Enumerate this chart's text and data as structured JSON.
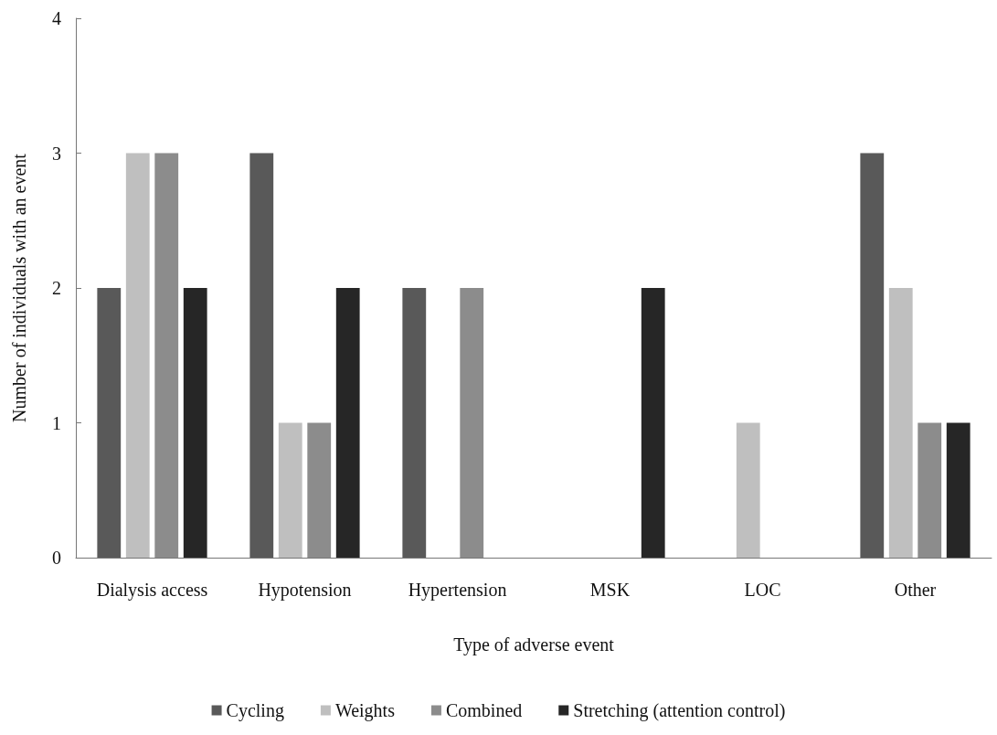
{
  "chart_data": {
    "type": "bar",
    "xlabel": "Type of adverse event",
    "ylabel": "Number of individuals with an event",
    "categories": [
      "Dialysis access",
      "Hypotension",
      "Hypertension",
      "MSK",
      "LOC",
      "Other"
    ],
    "series": [
      {
        "name": "Cycling",
        "color": "#595959",
        "values": [
          2,
          3,
          2,
          0,
          0,
          3
        ]
      },
      {
        "name": "Weights",
        "color": "#bfbfbf",
        "values": [
          3,
          1,
          0,
          0,
          1,
          2
        ]
      },
      {
        "name": "Combined",
        "color": "#8c8c8c",
        "values": [
          3,
          1,
          2,
          0,
          0,
          1
        ]
      },
      {
        "name": "Stretching (attention control)",
        "color": "#262626",
        "values": [
          2,
          2,
          0,
          2,
          0,
          1
        ]
      }
    ],
    "ylim": [
      0,
      4
    ],
    "yticks": [
      0,
      1,
      2,
      3,
      4
    ],
    "grid": false,
    "legend": "bottom"
  }
}
